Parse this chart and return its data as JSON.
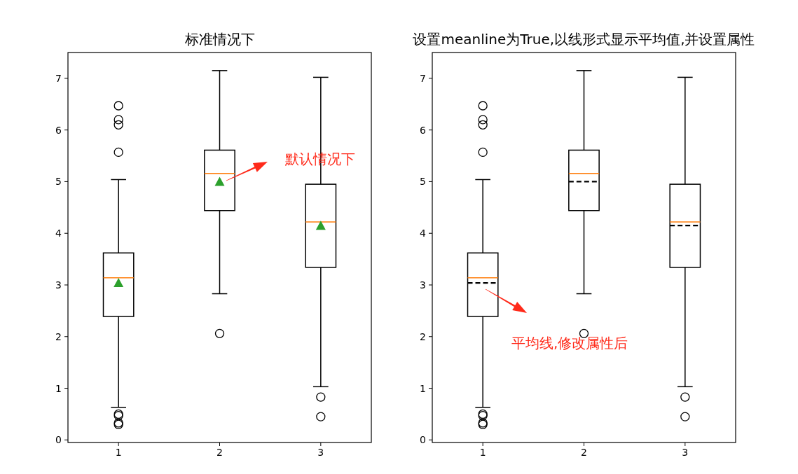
{
  "chart_data": [
    {
      "type": "box",
      "title": "标准情况下",
      "categories": [
        "1",
        "2",
        "3"
      ],
      "ylim": [
        -0.05,
        7.5
      ],
      "yticks": [
        0,
        1,
        2,
        3,
        4,
        5,
        6,
        7
      ],
      "marker": "triangle",
      "boxes": [
        {
          "low": 0.63,
          "q1": 2.39,
          "median": 3.14,
          "q3": 3.62,
          "high": 5.04,
          "mean": 3.04,
          "outliers": [
            6.47,
            6.2,
            6.1,
            5.57,
            0.5,
            0.47,
            0.33,
            0.3
          ]
        },
        {
          "low": 2.83,
          "q1": 4.44,
          "median": 5.16,
          "q3": 5.61,
          "high": 7.15,
          "mean": 5.0,
          "outliers": [
            2.06
          ]
        },
        {
          "low": 1.03,
          "q1": 3.34,
          "median": 4.22,
          "q3": 4.95,
          "high": 7.02,
          "mean": 4.15,
          "outliers": [
            0.83,
            0.45
          ]
        }
      ],
      "annotations": [
        "默认情况下"
      ]
    },
    {
      "type": "box",
      "title": "设置meanline为True,以线形式显示平均值,并设置属性",
      "categories": [
        "1",
        "2",
        "3"
      ],
      "ylim": [
        -0.05,
        7.5
      ],
      "yticks": [
        0,
        1,
        2,
        3,
        4,
        5,
        6,
        7
      ],
      "line_style": "dashed",
      "boxes": [
        {
          "low": 0.63,
          "q1": 2.39,
          "median": 3.14,
          "q3": 3.62,
          "high": 5.04,
          "mean": 3.04,
          "outliers": [
            6.47,
            6.2,
            6.1,
            5.57,
            0.5,
            0.47,
            0.33,
            0.3
          ]
        },
        {
          "low": 2.83,
          "q1": 4.44,
          "median": 5.16,
          "q3": 5.61,
          "high": 7.15,
          "mean": 5.0,
          "outliers": [
            2.06
          ]
        },
        {
          "low": 1.03,
          "q1": 3.34,
          "median": 4.22,
          "q3": 4.95,
          "high": 7.02,
          "mean": 4.15,
          "outliers": [
            0.83,
            0.45
          ]
        }
      ],
      "annotations": [
        "平均线,修改属性后"
      ]
    }
  ]
}
